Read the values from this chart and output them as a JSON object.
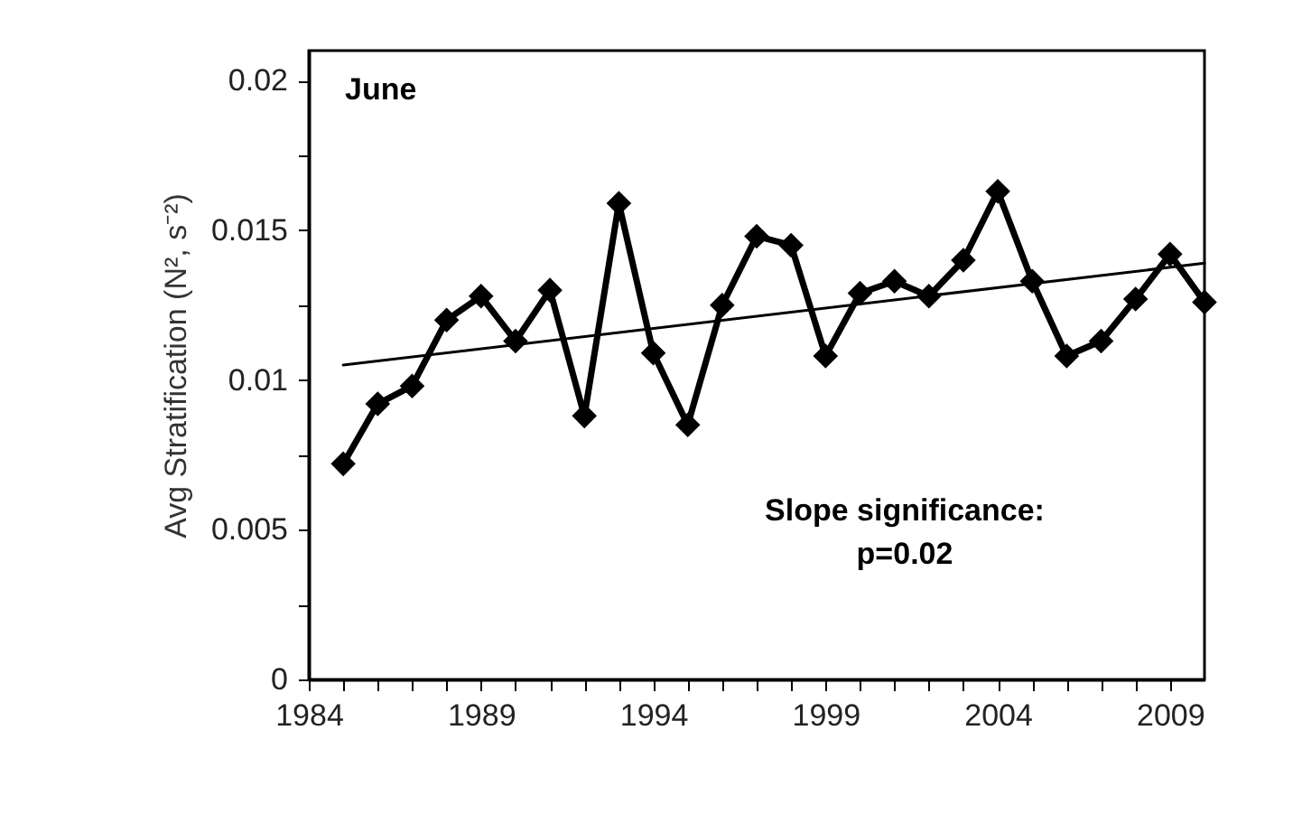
{
  "chart_data": {
    "type": "line",
    "ylabel": "Avg Stratification (N², s⁻²)",
    "x": [
      1985,
      1986,
      1987,
      1988,
      1989,
      1990,
      1991,
      1992,
      1993,
      1994,
      1995,
      1996,
      1997,
      1998,
      1999,
      2000,
      2001,
      2002,
      2003,
      2004,
      2005,
      2006,
      2007,
      2008,
      2009,
      2010
    ],
    "series": [
      {
        "color": "#000000",
        "values": [
          0.0072,
          0.0092,
          0.0098,
          0.012,
          0.0128,
          0.0113,
          0.013,
          0.0088,
          0.0159,
          0.0109,
          0.0085,
          0.0125,
          0.0148,
          0.0145,
          0.0108,
          0.0129,
          0.0133,
          0.0128,
          0.014,
          0.0163,
          0.0133,
          0.0108,
          0.0113,
          0.0127,
          0.0142,
          0.0126
        ]
      },
      {
        "type": "line",
        "color": "#000000",
        "marker": "none",
        "x": [
          1985,
          2010
        ],
        "values": [
          0.0105,
          0.0139
        ]
      }
    ],
    "marker": "diamond",
    "line_style": "solid",
    "grid": false,
    "xlim": [
      1984,
      2010
    ],
    "ylim": [
      0,
      0.021
    ],
    "xticks": [
      1984,
      {
        "value": 1985,
        "label": null
      },
      {
        "value": 1986,
        "label": null
      },
      {
        "value": 1987,
        "label": null
      },
      {
        "value": 1988,
        "label": null
      },
      1989,
      {
        "value": 1990,
        "label": null
      },
      {
        "value": 1991,
        "label": null
      },
      {
        "value": 1992,
        "label": null
      },
      {
        "value": 1993,
        "label": null
      },
      1994,
      {
        "value": 1995,
        "label": null
      },
      {
        "value": 1996,
        "label": null
      },
      {
        "value": 1997,
        "label": null
      },
      {
        "value": 1998,
        "label": null
      },
      1999,
      {
        "value": 2000,
        "label": null
      },
      {
        "value": 2001,
        "label": null
      },
      {
        "value": 2002,
        "label": null
      },
      {
        "value": 2003,
        "label": null
      },
      2004,
      {
        "value": 2005,
        "label": null
      },
      {
        "value": 2006,
        "label": null
      },
      {
        "value": 2007,
        "label": null
      },
      {
        "value": 2008,
        "label": null
      },
      2009
    ],
    "yticks": [
      {
        "value": 0,
        "label": "0"
      },
      {
        "value": 0.0025,
        "label": null
      },
      {
        "value": 0.005,
        "label": "0.005"
      },
      {
        "value": 0.0075,
        "label": null
      },
      {
        "value": 0.01,
        "label": "0.01"
      },
      {
        "value": 0.0125,
        "label": null
      },
      {
        "value": 0.015,
        "label": "0.015"
      },
      {
        "value": 0.0175,
        "label": null
      },
      {
        "value": 0.02,
        "label": "0.02"
      }
    ],
    "annotations": [
      "June",
      "Slope significance:\np=0.02"
    ]
  }
}
